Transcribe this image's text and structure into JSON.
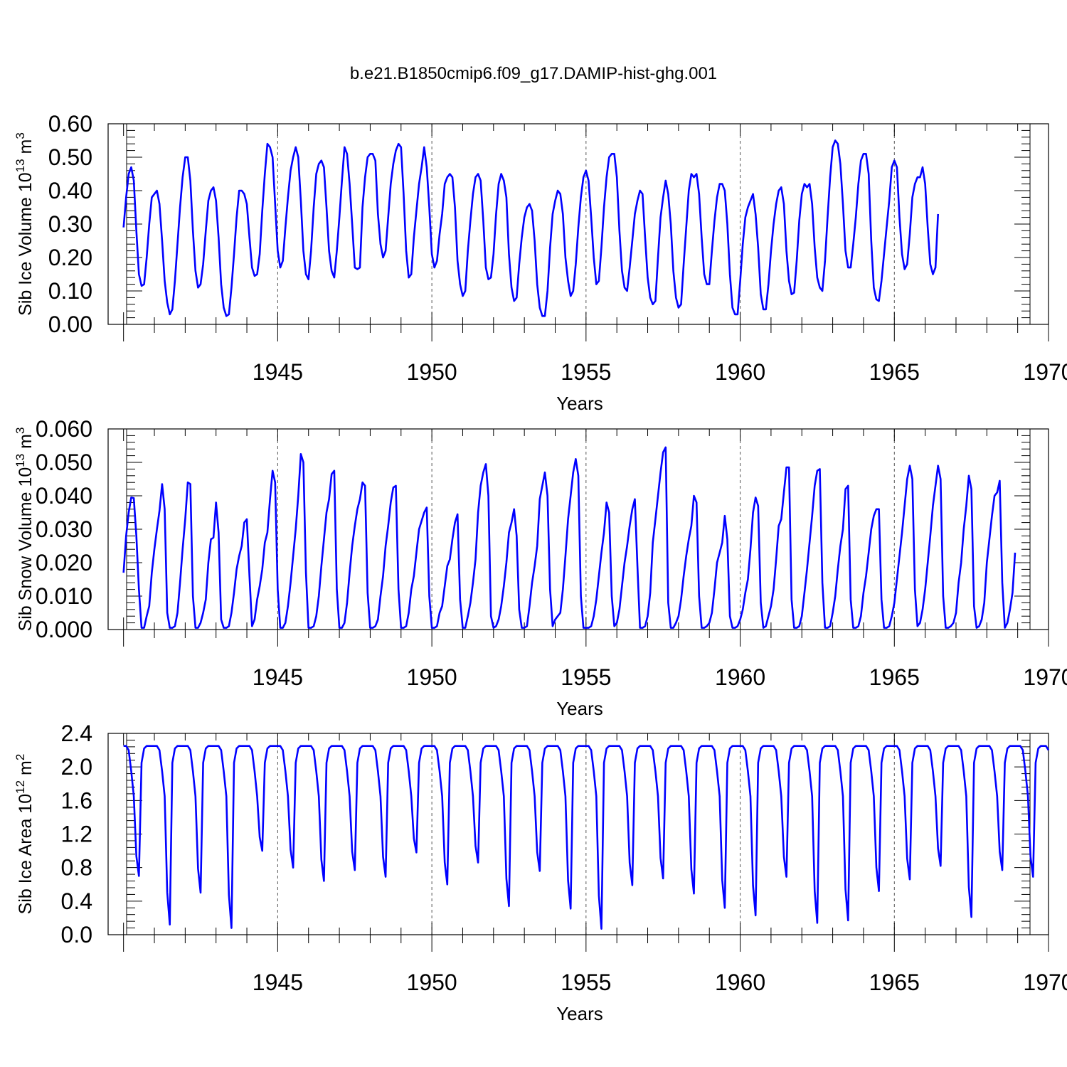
{
  "title": "b.e21.B1850cmip6.f09_g17.DAMIP-hist-ghg.001",
  "chart_data": [
    {
      "type": "line",
      "ylabel": "Sib Ice Volume 10",
      "ylabel_exp": "13",
      "ylabel_unit": " m",
      "ylabel_unit_exp": "3",
      "xlabel": "Years",
      "xlim": [
        1939.5,
        1970
      ],
      "ylim": [
        0.0,
        0.6
      ],
      "yticks": [
        "0.00",
        "0.10",
        "0.20",
        "0.30",
        "0.40",
        "0.50",
        "0.60"
      ],
      "yminor_step": 0.02,
      "xticks": [
        "1945",
        "1950",
        "1955",
        "1960",
        "1965",
        "1970"
      ],
      "grid": "vertical dashed at major x ticks",
      "series": [
        {
          "name": "Sib Ice Volume",
          "color": "#0000ff",
          "start": 1940.0,
          "step": 0.0833333,
          "values": [
            0.29,
            0.38,
            0.45,
            0.47,
            0.43,
            0.28,
            0.15,
            0.115,
            0.12,
            0.2,
            0.3,
            0.38,
            0.39,
            0.4,
            0.36,
            0.25,
            0.13,
            0.065,
            0.03,
            0.045,
            0.13,
            0.24,
            0.35,
            0.44,
            0.5,
            0.5,
            0.43,
            0.28,
            0.16,
            0.11,
            0.12,
            0.18,
            0.28,
            0.37,
            0.4,
            0.41,
            0.37,
            0.26,
            0.12,
            0.05,
            0.025,
            0.03,
            0.11,
            0.21,
            0.32,
            0.4,
            0.4,
            0.39,
            0.36,
            0.26,
            0.17,
            0.145,
            0.15,
            0.21,
            0.34,
            0.45,
            0.54,
            0.53,
            0.5,
            0.36,
            0.22,
            0.17,
            0.19,
            0.29,
            0.38,
            0.46,
            0.5,
            0.53,
            0.5,
            0.37,
            0.22,
            0.15,
            0.135,
            0.22,
            0.35,
            0.45,
            0.48,
            0.49,
            0.47,
            0.35,
            0.22,
            0.16,
            0.14,
            0.22,
            0.32,
            0.43,
            0.53,
            0.51,
            0.42,
            0.3,
            0.17,
            0.165,
            0.17,
            0.35,
            0.44,
            0.5,
            0.51,
            0.51,
            0.49,
            0.33,
            0.24,
            0.2,
            0.22,
            0.32,
            0.42,
            0.48,
            0.52,
            0.54,
            0.53,
            0.39,
            0.22,
            0.14,
            0.15,
            0.26,
            0.34,
            0.42,
            0.47,
            0.53,
            0.47,
            0.35,
            0.21,
            0.17,
            0.19,
            0.27,
            0.33,
            0.42,
            0.44,
            0.45,
            0.44,
            0.35,
            0.19,
            0.12,
            0.085,
            0.1,
            0.22,
            0.31,
            0.39,
            0.44,
            0.45,
            0.43,
            0.31,
            0.17,
            0.135,
            0.14,
            0.21,
            0.33,
            0.42,
            0.45,
            0.43,
            0.38,
            0.21,
            0.11,
            0.07,
            0.08,
            0.18,
            0.26,
            0.32,
            0.35,
            0.36,
            0.34,
            0.25,
            0.12,
            0.05,
            0.025,
            0.025,
            0.1,
            0.23,
            0.33,
            0.37,
            0.4,
            0.39,
            0.33,
            0.2,
            0.13,
            0.085,
            0.1,
            0.18,
            0.29,
            0.38,
            0.44,
            0.46,
            0.43,
            0.32,
            0.2,
            0.12,
            0.13,
            0.23,
            0.35,
            0.44,
            0.5,
            0.51,
            0.51,
            0.44,
            0.28,
            0.16,
            0.11,
            0.1,
            0.17,
            0.25,
            0.33,
            0.37,
            0.4,
            0.39,
            0.26,
            0.14,
            0.08,
            0.06,
            0.07,
            0.2,
            0.32,
            0.38,
            0.43,
            0.39,
            0.3,
            0.16,
            0.08,
            0.05,
            0.06,
            0.18,
            0.29,
            0.4,
            0.45,
            0.44,
            0.45,
            0.39,
            0.26,
            0.15,
            0.12,
            0.12,
            0.22,
            0.31,
            0.38,
            0.42,
            0.42,
            0.4,
            0.3,
            0.15,
            0.05,
            0.03,
            0.03,
            0.13,
            0.24,
            0.32,
            0.35,
            0.37,
            0.39,
            0.33,
            0.23,
            0.09,
            0.045,
            0.045,
            0.12,
            0.22,
            0.3,
            0.36,
            0.4,
            0.41,
            0.36,
            0.22,
            0.13,
            0.09,
            0.095,
            0.19,
            0.31,
            0.39,
            0.42,
            0.41,
            0.42,
            0.36,
            0.23,
            0.14,
            0.11,
            0.1,
            0.19,
            0.32,
            0.44,
            0.53,
            0.55,
            0.54,
            0.48,
            0.36,
            0.22,
            0.17,
            0.17,
            0.24,
            0.32,
            0.42,
            0.49,
            0.51,
            0.51,
            0.45,
            0.25,
            0.11,
            0.075,
            0.07,
            0.13,
            0.21,
            0.29,
            0.37,
            0.47,
            0.49,
            0.47,
            0.32,
            0.21,
            0.165,
            0.18,
            0.27,
            0.38,
            0.42,
            0.44,
            0.44,
            0.47,
            0.42,
            0.29,
            0.18,
            0.15,
            0.17,
            0.33
          ]
        }
      ]
    },
    {
      "type": "line",
      "ylabel": "Sib Snow Volume 10",
      "ylabel_exp": "13",
      "ylabel_unit": " m",
      "ylabel_unit_exp": "3",
      "xlabel": "Years",
      "xlim": [
        1939.5,
        1970
      ],
      "ylim": [
        0.0,
        0.06
      ],
      "yticks": [
        "0.000",
        "0.010",
        "0.020",
        "0.030",
        "0.040",
        "0.050",
        "0.060"
      ],
      "yminor_step": 0.002,
      "xticks": [
        "1945",
        "1950",
        "1955",
        "1960",
        "1965",
        "1970"
      ],
      "grid": "vertical dashed at major x ticks",
      "series": [
        {
          "name": "Sib Snow Volume",
          "color": "#0000ff",
          "start": 1940.0,
          "step": 0.0833333,
          "values": [
            0.017,
            0.028,
            0.035,
            0.0395,
            0.0393,
            0.028,
            0.012,
            0.0005,
            0.0005,
            0.004,
            0.007,
            0.017,
            0.024,
            0.03,
            0.0355,
            0.0435,
            0.036,
            0.005,
            0.0005,
            0.0005,
            0.001,
            0.005,
            0.014,
            0.024,
            0.033,
            0.044,
            0.0435,
            0.01,
            0.0005,
            0.0005,
            0.002,
            0.005,
            0.009,
            0.02,
            0.027,
            0.0275,
            0.038,
            0.029,
            0.003,
            0.0005,
            0.0005,
            0.001,
            0.005,
            0.011,
            0.018,
            0.022,
            0.025,
            0.032,
            0.033,
            0.016,
            0.001,
            0.003,
            0.009,
            0.013,
            0.018,
            0.026,
            0.029,
            0.039,
            0.0475,
            0.044,
            0.012,
            0.0005,
            0.0005,
            0.002,
            0.007,
            0.014,
            0.022,
            0.03,
            0.04,
            0.0525,
            0.05,
            0.017,
            0.0005,
            0.0005,
            0.001,
            0.004,
            0.01,
            0.019,
            0.027,
            0.035,
            0.039,
            0.0465,
            0.0475,
            0.012,
            0.0005,
            0.0005,
            0.002,
            0.008,
            0.017,
            0.025,
            0.031,
            0.036,
            0.039,
            0.044,
            0.043,
            0.011,
            0.0005,
            0.0005,
            0.001,
            0.003,
            0.01,
            0.016,
            0.025,
            0.031,
            0.038,
            0.0425,
            0.043,
            0.012,
            0.0005,
            0.0005,
            0.001,
            0.005,
            0.012,
            0.016,
            0.023,
            0.03,
            0.0325,
            0.035,
            0.0365,
            0.01,
            0.0005,
            0.0005,
            0.001,
            0.005,
            0.007,
            0.013,
            0.019,
            0.021,
            0.027,
            0.032,
            0.0345,
            0.009,
            0.0005,
            0.0005,
            0.004,
            0.008,
            0.014,
            0.021,
            0.035,
            0.043,
            0.047,
            0.0495,
            0.04,
            0.004,
            0.0005,
            0.001,
            0.003,
            0.007,
            0.013,
            0.02,
            0.029,
            0.032,
            0.036,
            0.028,
            0.006,
            0.0005,
            0.0005,
            0.001,
            0.007,
            0.014,
            0.019,
            0.025,
            0.039,
            0.043,
            0.047,
            0.04,
            0.012,
            0.001,
            0.003,
            0.004,
            0.005,
            0.012,
            0.022,
            0.033,
            0.04,
            0.047,
            0.051,
            0.046,
            0.01,
            0.0005,
            0.0005,
            0.0005,
            0.001,
            0.004,
            0.009,
            0.016,
            0.023,
            0.029,
            0.038,
            0.035,
            0.01,
            0.001,
            0.002,
            0.006,
            0.013,
            0.02,
            0.025,
            0.031,
            0.036,
            0.039,
            0.019,
            0.0005,
            0.0005,
            0.001,
            0.004,
            0.011,
            0.026,
            0.033,
            0.04,
            0.047,
            0.053,
            0.0545,
            0.008,
            0.0005,
            0.0005,
            0.002,
            0.004,
            0.009,
            0.016,
            0.022,
            0.027,
            0.031,
            0.04,
            0.038,
            0.01,
            0.0005,
            0.0005,
            0.001,
            0.002,
            0.005,
            0.012,
            0.02,
            0.023,
            0.026,
            0.034,
            0.027,
            0.004,
            0.0005,
            0.0005,
            0.001,
            0.003,
            0.006,
            0.011,
            0.015,
            0.024,
            0.035,
            0.0395,
            0.037,
            0.008,
            0.0005,
            0.001,
            0.004,
            0.007,
            0.012,
            0.021,
            0.031,
            0.033,
            0.041,
            0.0485,
            0.0485,
            0.009,
            0.0005,
            0.0005,
            0.001,
            0.004,
            0.011,
            0.018,
            0.026,
            0.034,
            0.043,
            0.0475,
            0.048,
            0.014,
            0.0005,
            0.0005,
            0.001,
            0.005,
            0.01,
            0.018,
            0.025,
            0.03,
            0.042,
            0.043,
            0.009,
            0.0005,
            0.0005,
            0.001,
            0.004,
            0.011,
            0.016,
            0.023,
            0.03,
            0.034,
            0.036,
            0.036,
            0.009,
            0.0005,
            0.0005,
            0.001,
            0.004,
            0.008,
            0.015,
            0.022,
            0.029,
            0.037,
            0.045,
            0.049,
            0.045,
            0.012,
            0.001,
            0.002,
            0.006,
            0.012,
            0.02,
            0.028,
            0.037,
            0.043,
            0.049,
            0.045,
            0.01,
            0.0005,
            0.0005,
            0.001,
            0.002,
            0.005,
            0.014,
            0.02,
            0.03,
            0.037,
            0.046,
            0.042,
            0.007,
            0.0005,
            0.001,
            0.003,
            0.008,
            0.02,
            0.027,
            0.034,
            0.04,
            0.041,
            0.0445,
            0.014,
            0.0005,
            0.002,
            0.006,
            0.011,
            0.023
          ]
        }
      ]
    },
    {
      "type": "line",
      "ylabel": "Sib Ice Area 10",
      "ylabel_exp": "12",
      "ylabel_unit": " m",
      "ylabel_unit_exp": "2",
      "xlabel": "Years",
      "xlim": [
        1939.5,
        1970
      ],
      "ylim": [
        0.0,
        2.4
      ],
      "yticks": [
        "0.0",
        "0.4",
        "0.8",
        "1.2",
        "1.6",
        "2.0",
        "2.4"
      ],
      "yminor_step": 0.08,
      "xticks": [
        "1945",
        "1950",
        "1955",
        "1960",
        "1965",
        "1970"
      ],
      "grid": "vertical dashed at major x ticks",
      "series": [
        {
          "name": "Sib Ice Area",
          "color": "#0000ff",
          "start": 1940.0,
          "step": 0.0833333,
          "mins": [
            0.7,
            0.12,
            0.5,
            0.08,
            1.0,
            0.8,
            0.64,
            0.77,
            0.69,
            0.98,
            0.6,
            0.86,
            0.34,
            0.76,
            0.31,
            0.07,
            0.59,
            0.67,
            0.49,
            0.32,
            0.23,
            0.69,
            0.14,
            0.17,
            0.52,
            0.66,
            0.82,
            0.21,
            0.77,
            0.69
          ]
        }
      ]
    }
  ]
}
